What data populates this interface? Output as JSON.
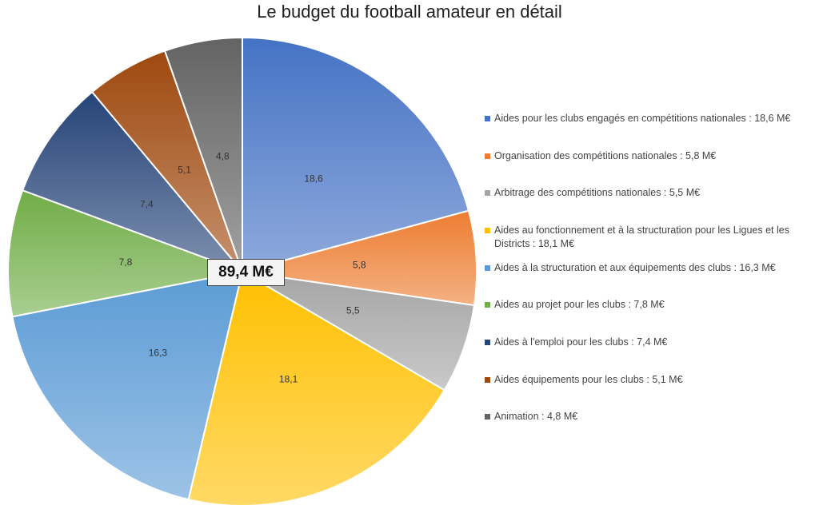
{
  "chart_data": {
    "type": "pie",
    "title": "Le budget du football amateur en détail",
    "total_label": "89,4 M€",
    "slices": [
      {
        "label": "Aides pour les clubs engagés en compétitions nationales : 18,6 M€",
        "value": 18.6,
        "data_label": "18,6",
        "color": "#4472C4"
      },
      {
        "label": "Organisation des compétitions nationales : 5,8 M€",
        "value": 5.8,
        "data_label": "5,8",
        "color": "#ED7D31"
      },
      {
        "label": "Arbitrage des compétitions nationales : 5,5 M€",
        "value": 5.5,
        "data_label": "5,5",
        "color": "#A5A5A5"
      },
      {
        "label": "Aides au fonctionnement et à la structuration pour les Ligues et les Districts : 18,1 M€",
        "value": 18.1,
        "data_label": "18,1",
        "color": "#FFC000"
      },
      {
        "label": "Aides à la structuration et aux équipements des clubs : 16,3 M€",
        "value": 16.3,
        "data_label": "16,3",
        "color": "#5B9BD5"
      },
      {
        "label": "Aides au projet pour les clubs : 7,8 M€",
        "value": 7.8,
        "data_label": "7,8",
        "color": "#70AD47"
      },
      {
        "label": "Aides à l'emploi pour les clubs : 7,4 M€",
        "value": 7.4,
        "data_label": "7,4",
        "color": "#264478"
      },
      {
        "label": "Aides équipements pour les clubs : 5,1 M€",
        "value": 5.1,
        "data_label": "5,1",
        "color": "#9E480E"
      },
      {
        "label": "Animation : 4,8 M€",
        "value": 4.8,
        "data_label": "4,8",
        "color": "#636363"
      }
    ],
    "legend_position": "right"
  }
}
